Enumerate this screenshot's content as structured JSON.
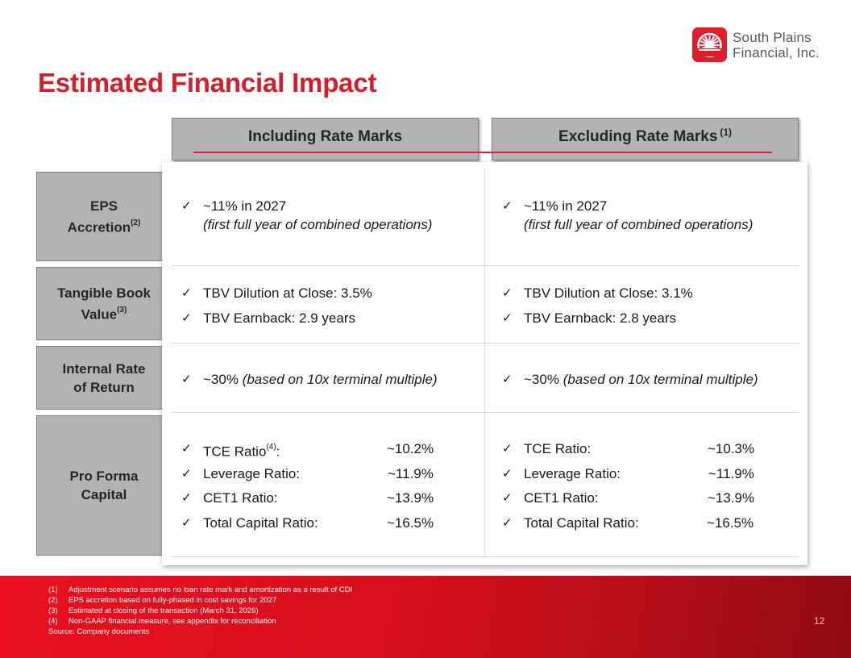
{
  "logo": {
    "icon": "sun-wheel-icon",
    "line1": "South Plains",
    "line2": "Financial, Inc."
  },
  "title": "Estimated Financial Impact",
  "columns": {
    "including": "Including Rate Marks",
    "excluding": "Excluding Rate Marks",
    "excluding_note": "(1)"
  },
  "rows": {
    "eps": {
      "label_line1": "EPS",
      "label_line2": "Accretion",
      "label_sup": "(2)",
      "including": {
        "main": "~11% in 2027",
        "sub": "(first full year of combined operations)"
      },
      "excluding": {
        "main": "~11% in 2027",
        "sub": "(first full year of combined operations)"
      }
    },
    "tbv": {
      "label_line1": "Tangible Book",
      "label_line2": "Value",
      "label_sup": "(3)",
      "including": [
        "TBV Dilution at Close: 3.5%",
        "TBV Earnback: 2.9 years"
      ],
      "excluding": [
        "TBV Dilution at Close: 3.1%",
        "TBV Earnback: 2.8 years"
      ]
    },
    "irr": {
      "label_line1": "Internal Rate",
      "label_line2": "of Return",
      "including": {
        "main": "~30%",
        "note": "(based on 10x terminal multiple)"
      },
      "excluding": {
        "main": "~30%",
        "note": "(based on 10x terminal multiple)"
      }
    },
    "capital": {
      "label_line1": "Pro Forma",
      "label_line2": "Capital",
      "including": [
        {
          "label": "TCE Ratio",
          "sup": "(4)",
          "suffix": ":",
          "value": "~10.2%"
        },
        {
          "label": "Leverage Ratio:",
          "value": "~11.9%"
        },
        {
          "label": "CET1 Ratio:",
          "value": "~13.9%"
        },
        {
          "label": "Total Capital Ratio:",
          "value": "~16.5%"
        }
      ],
      "excluding": [
        {
          "label": "TCE Ratio:",
          "value": "~10.3%"
        },
        {
          "label": "Leverage Ratio:",
          "value": "~11.9%"
        },
        {
          "label": "CET1 Ratio:",
          "value": "~13.9%"
        },
        {
          "label": "Total Capital Ratio:",
          "value": "~16.5%"
        }
      ]
    }
  },
  "check_glyph": "✓",
  "footnotes": [
    {
      "num": "(1)",
      "text": "Adjustment scenario assumes no loan rate mark and amortization as a result of CDI"
    },
    {
      "num": "(2)",
      "text": "EPS accretion based on fully-phased in cost savings for 2027"
    },
    {
      "num": "(3)",
      "text": "Estimated at closing of the transaction (March 31, 2026)"
    },
    {
      "num": "(4)",
      "text": "Non-GAAP financial measure, see appendix for reconciliation"
    }
  ],
  "source": "Source: Company documents",
  "page_number": "12",
  "colors": {
    "accent": "#d71e28",
    "header_gray": "#b3b3b3"
  }
}
